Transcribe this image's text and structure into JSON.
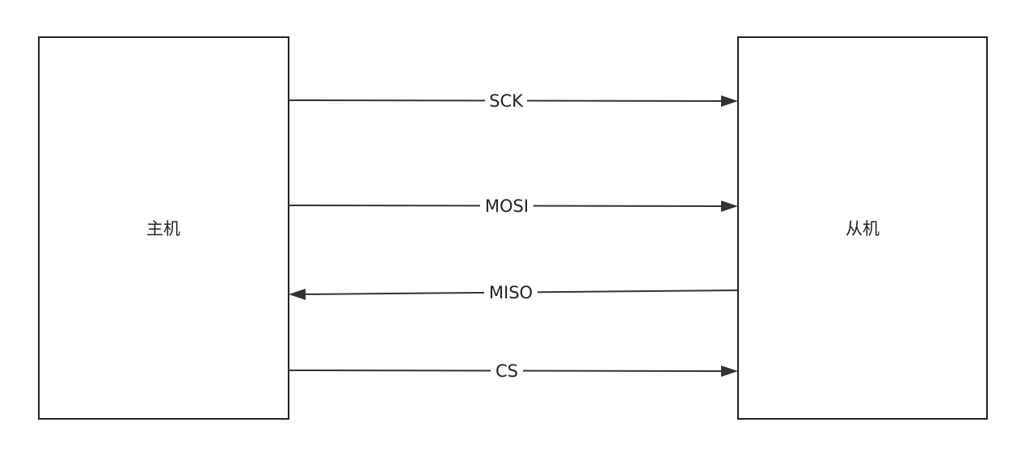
{
  "master": {
    "label": "主机"
  },
  "slave": {
    "label": "从机"
  },
  "signals": [
    {
      "id": "sck",
      "label": "SCK",
      "direction": "master-to-slave"
    },
    {
      "id": "mosi",
      "label": "MOSI",
      "direction": "master-to-slave"
    },
    {
      "id": "miso",
      "label": "MISO",
      "direction": "slave-to-master"
    },
    {
      "id": "cs",
      "label": "CS",
      "direction": "master-to-slave"
    }
  ],
  "colors": {
    "stroke": "#222222",
    "arrow": "#333333",
    "background": "#ffffff"
  }
}
